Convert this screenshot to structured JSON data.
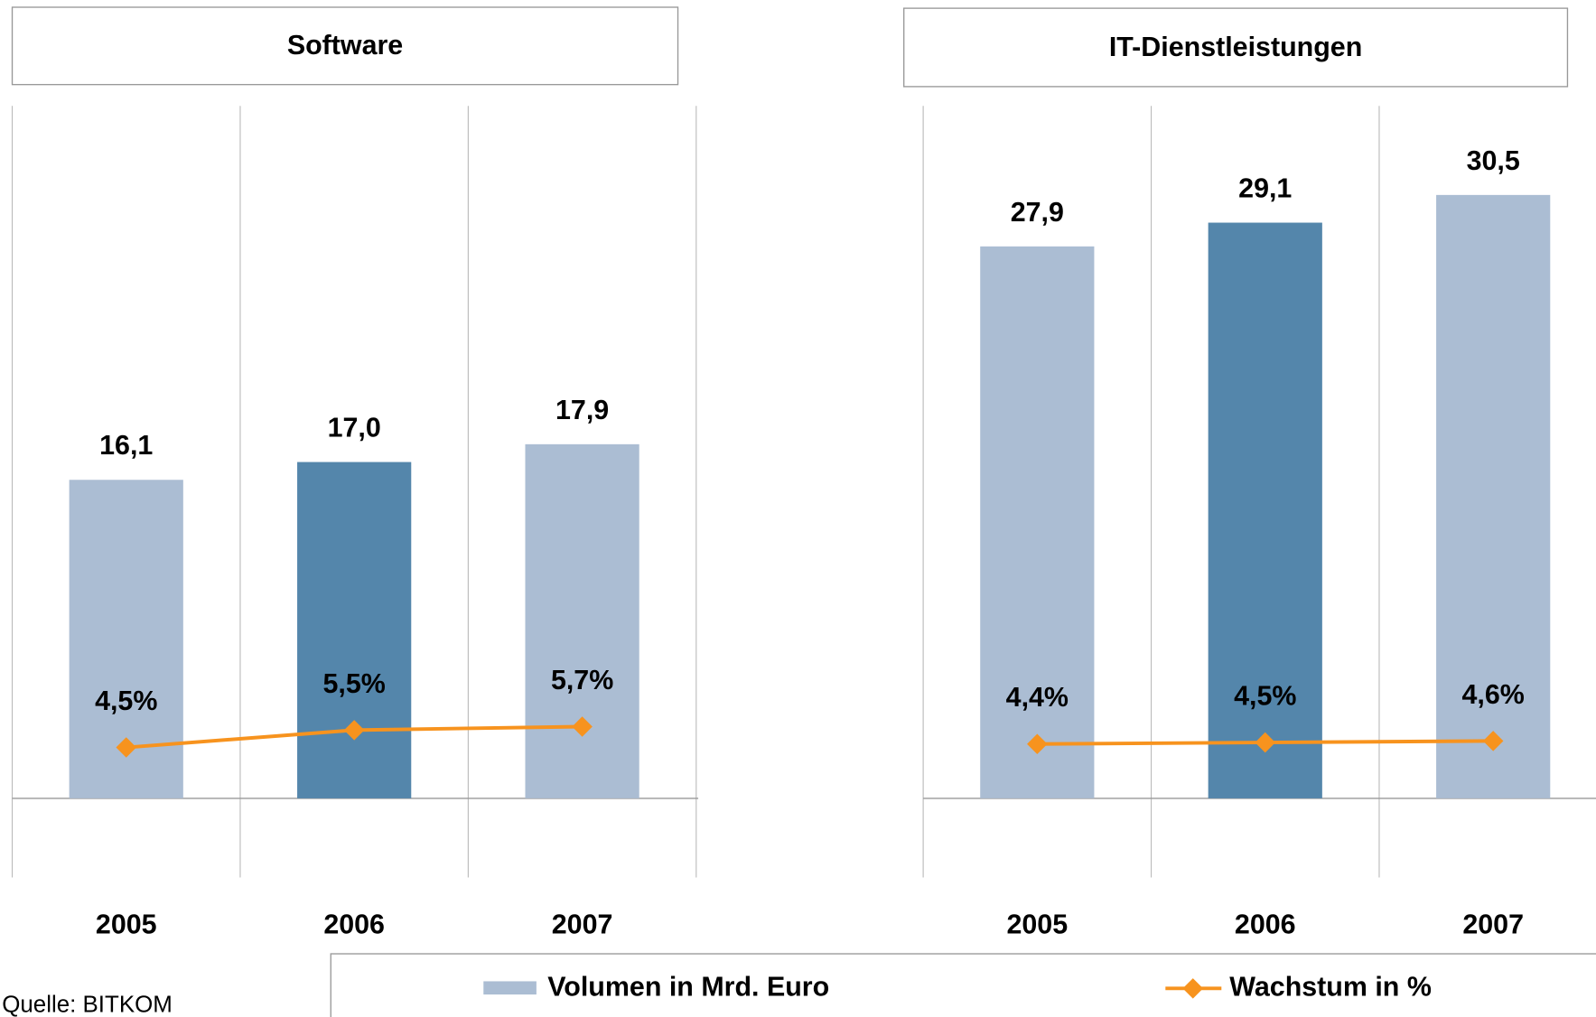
{
  "source": "Quelle: BITKOM",
  "chart_data": [
    {
      "type": "bar-line",
      "title": "Software",
      "categories": [
        "2005",
        "2006",
        "2007"
      ],
      "ylim": [
        -4,
        35
      ],
      "y2lim": [
        -3,
        41.5
      ],
      "series": [
        {
          "name": "Volumen in Mrd. Euro",
          "type": "bar",
          "color": "#abbdd3",
          "colors": [
            "#abbdd3",
            "#5486ab",
            "#abbdd3"
          ],
          "values": [
            16.1,
            17.0,
            17.9
          ],
          "value_labels": [
            "16,1",
            "17,0",
            "17,9"
          ]
        },
        {
          "name": "Wachstum in %",
          "type": "line",
          "axis": "y2",
          "color": "#f7931e",
          "values": [
            4.5,
            5.5,
            5.7
          ],
          "value_labels": [
            "4,5%",
            "5,5%",
            "5,7%"
          ]
        }
      ]
    },
    {
      "type": "bar-line",
      "title": "IT-Dienstleistungen",
      "categories": [
        "2005",
        "2006",
        "2007"
      ],
      "ylim": [
        -4,
        35
      ],
      "y2lim": [
        -4.3,
        46
      ],
      "series": [
        {
          "type": "bar",
          "color": "#abbdd3",
          "colors": [
            "#abbdd3",
            "#5486ab",
            "#abbdd3"
          ],
          "values": [
            27.9,
            29.1,
            30.5
          ],
          "value_labels": [
            "27,9",
            "29,1",
            "30,5"
          ]
        },
        {
          "type": "line",
          "axis": "y2",
          "color": "#f7931e",
          "values": [
            4.4,
            4.5,
            4.6
          ],
          "value_labels": [
            "4,4%",
            "4,5%",
            "4,6%"
          ]
        }
      ]
    }
  ]
}
